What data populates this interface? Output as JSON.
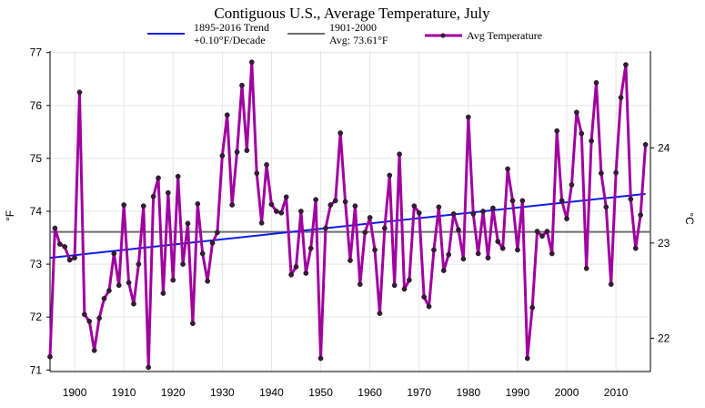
{
  "chart_data": {
    "type": "line",
    "title": "Contiguous U.S., Average Temperature, July",
    "ylabel": "°F",
    "ylabel_right": "°C",
    "xlim": [
      1895,
      2017
    ],
    "ylim": [
      70.97,
      77.03
    ],
    "x_ticks": [
      1900,
      1910,
      1920,
      1930,
      1940,
      1950,
      1960,
      1970,
      1980,
      1990,
      2000,
      2010
    ],
    "y_ticks": [
      71,
      72,
      73,
      74,
      75,
      76,
      77
    ],
    "y_ticks_right": [
      22,
      23,
      24
    ],
    "grid": true,
    "legend_placement": "top",
    "legend": [
      {
        "label": "1895-2016 Trend",
        "sublabel": "+0.10°F/Decade",
        "color": "#0a1ee6",
        "kind": "line"
      },
      {
        "label": "1901-2000",
        "sublabel": "Avg: 73.61°F",
        "color": "#6e6e6e",
        "kind": "line"
      },
      {
        "label": "Avg Temperature",
        "sublabel": "",
        "color": "#a000a0",
        "kind": "line-marker"
      }
    ],
    "trend": {
      "x": [
        1895,
        2016
      ],
      "y": [
        73.12,
        74.33
      ],
      "color": "#0a1ee6"
    },
    "baseline": {
      "value": 73.61,
      "color": "#6e6e6e"
    },
    "series": [
      {
        "name": "Avg Temperature",
        "color": "#a000a0",
        "x": [
          1895,
          1896,
          1897,
          1898,
          1899,
          1900,
          1901,
          1902,
          1903,
          1904,
          1905,
          1906,
          1907,
          1908,
          1909,
          1910,
          1911,
          1912,
          1913,
          1914,
          1915,
          1916,
          1917,
          1918,
          1919,
          1920,
          1921,
          1922,
          1923,
          1924,
          1925,
          1926,
          1927,
          1928,
          1929,
          1930,
          1931,
          1932,
          1933,
          1934,
          1935,
          1936,
          1937,
          1938,
          1939,
          1940,
          1941,
          1942,
          1943,
          1944,
          1945,
          1946,
          1947,
          1948,
          1949,
          1950,
          1951,
          1952,
          1953,
          1954,
          1955,
          1956,
          1957,
          1958,
          1959,
          1960,
          1961,
          1962,
          1963,
          1964,
          1965,
          1966,
          1967,
          1968,
          1969,
          1970,
          1971,
          1972,
          1973,
          1974,
          1975,
          1976,
          1977,
          1978,
          1979,
          1980,
          1981,
          1982,
          1983,
          1984,
          1985,
          1986,
          1987,
          1988,
          1989,
          1990,
          1991,
          1992,
          1993,
          1994,
          1995,
          1996,
          1997,
          1998,
          1999,
          2000,
          2001,
          2002,
          2003,
          2004,
          2005,
          2006,
          2007,
          2008,
          2009,
          2010,
          2011,
          2012,
          2013,
          2014,
          2015,
          2016
        ],
        "y": [
          71.25,
          73.68,
          73.38,
          73.33,
          73.08,
          73.12,
          76.25,
          72.05,
          71.92,
          71.37,
          71.98,
          72.35,
          72.5,
          73.2,
          72.6,
          74.12,
          72.65,
          72.25,
          73.0,
          74.1,
          71.05,
          74.28,
          74.63,
          72.45,
          74.35,
          72.7,
          74.66,
          73.0,
          73.77,
          71.88,
          74.14,
          73.2,
          72.68,
          73.4,
          73.6,
          75.05,
          75.82,
          74.12,
          75.12,
          76.38,
          75.15,
          76.82,
          74.72,
          73.78,
          74.88,
          74.13,
          74.0,
          73.97,
          74.27,
          72.8,
          72.95,
          74.0,
          72.83,
          73.3,
          74.22,
          71.22,
          73.68,
          74.12,
          74.2,
          75.48,
          74.18,
          73.07,
          74.1,
          72.62,
          73.6,
          73.88,
          73.27,
          72.07,
          73.68,
          74.68,
          72.6,
          75.08,
          72.53,
          72.7,
          74.1,
          73.97,
          72.38,
          72.2,
          73.27,
          74.08,
          72.88,
          73.18,
          73.95,
          73.65,
          73.1,
          75.78,
          73.95,
          73.2,
          74.0,
          73.12,
          74.06,
          73.43,
          73.3,
          74.8,
          74.2,
          73.27,
          74.2,
          71.22,
          72.18,
          73.62,
          73.53,
          73.62,
          73.2,
          75.52,
          74.2,
          73.86,
          74.5,
          75.87,
          75.47,
          72.92,
          75.33,
          76.43,
          74.72,
          74.08,
          72.62,
          74.73,
          76.15,
          76.77,
          74.23,
          73.3,
          73.93,
          75.26
        ]
      }
    ]
  }
}
